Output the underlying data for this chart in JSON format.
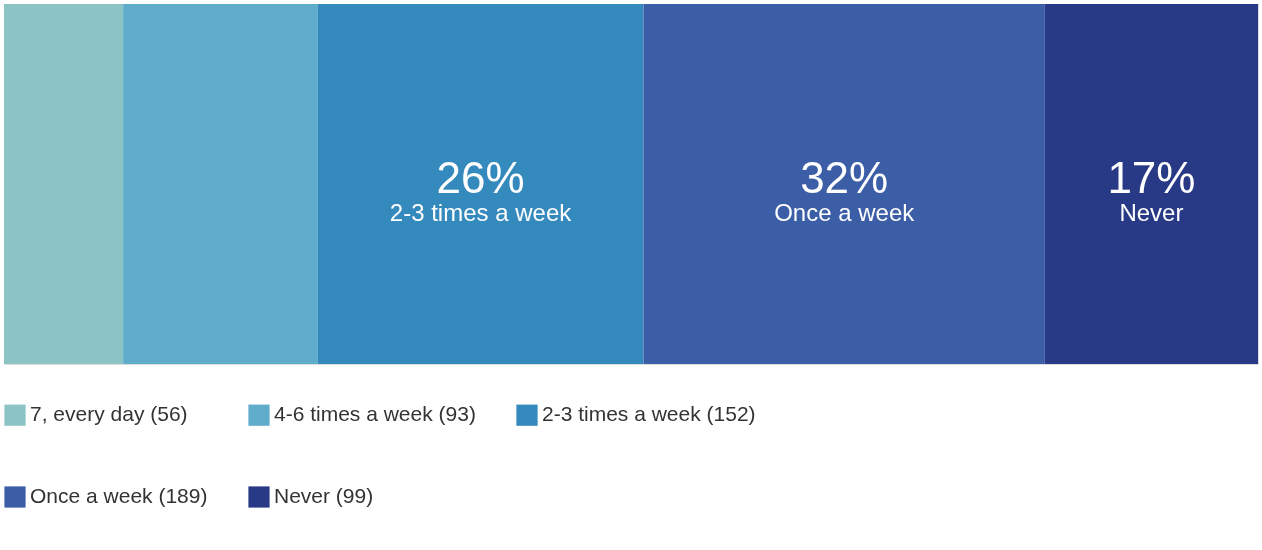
{
  "chart_data": {
    "type": "bar",
    "stacked": true,
    "orientation": "horizontal",
    "categories": [
      null
    ],
    "xlim": [
      0,
      100
    ],
    "tick_labels": false,
    "legend": "bottom",
    "series": [
      {
        "name": "7, every day (56)",
        "color": "#8cc3c4",
        "values": [
          9.5
        ]
      },
      {
        "name": "4-6 times a week (93)",
        "color": "#5faccb",
        "values": [
          15.5
        ]
      },
      {
        "name": "2-3 times a week (152)",
        "color": "#3489bd",
        "values": [
          26
        ],
        "value_labels": [
          "26%"
        ]
      },
      {
        "name": "Once a week (189)",
        "color": "#3b5ea6",
        "values": [
          32
        ],
        "value_labels": [
          "32%"
        ]
      },
      {
        "name": "Never (99)",
        "color": "#283a86",
        "values": [
          17
        ],
        "value_labels": [
          "17%"
        ]
      }
    ],
    "annotations": [
      "2-3 times a week",
      "Once a week",
      "Never"
    ]
  }
}
